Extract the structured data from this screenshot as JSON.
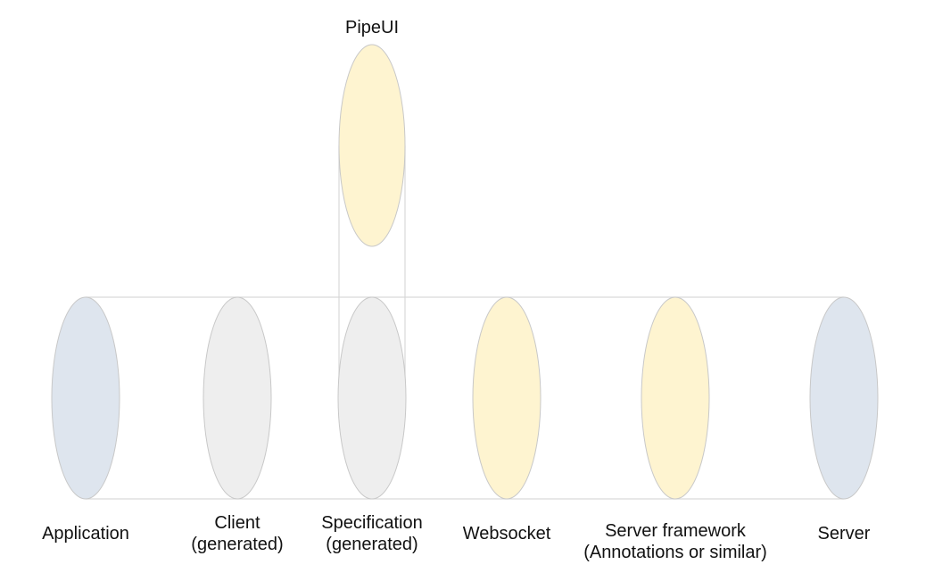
{
  "diagram": {
    "top_label": "PipeUI",
    "colors": {
      "blue": "#dee5ee",
      "gray": "#eeeeee",
      "yellow": "#fef4d0",
      "outline": "#c8c8c8",
      "connector": "#d9d9d9"
    },
    "nodes": [
      {
        "id": "application",
        "lines": [
          "Application"
        ],
        "color": "blue"
      },
      {
        "id": "client",
        "lines": [
          "Client",
          "(generated)"
        ],
        "color": "gray"
      },
      {
        "id": "specification",
        "lines": [
          "Specification",
          "(generated)"
        ],
        "color": "gray"
      },
      {
        "id": "websocket",
        "lines": [
          "Websocket"
        ],
        "color": "yellow"
      },
      {
        "id": "server-framework",
        "lines": [
          "Server framework",
          "(Annotations or similar)"
        ],
        "color": "yellow"
      },
      {
        "id": "server",
        "lines": [
          "Server"
        ],
        "color": "blue"
      }
    ]
  }
}
